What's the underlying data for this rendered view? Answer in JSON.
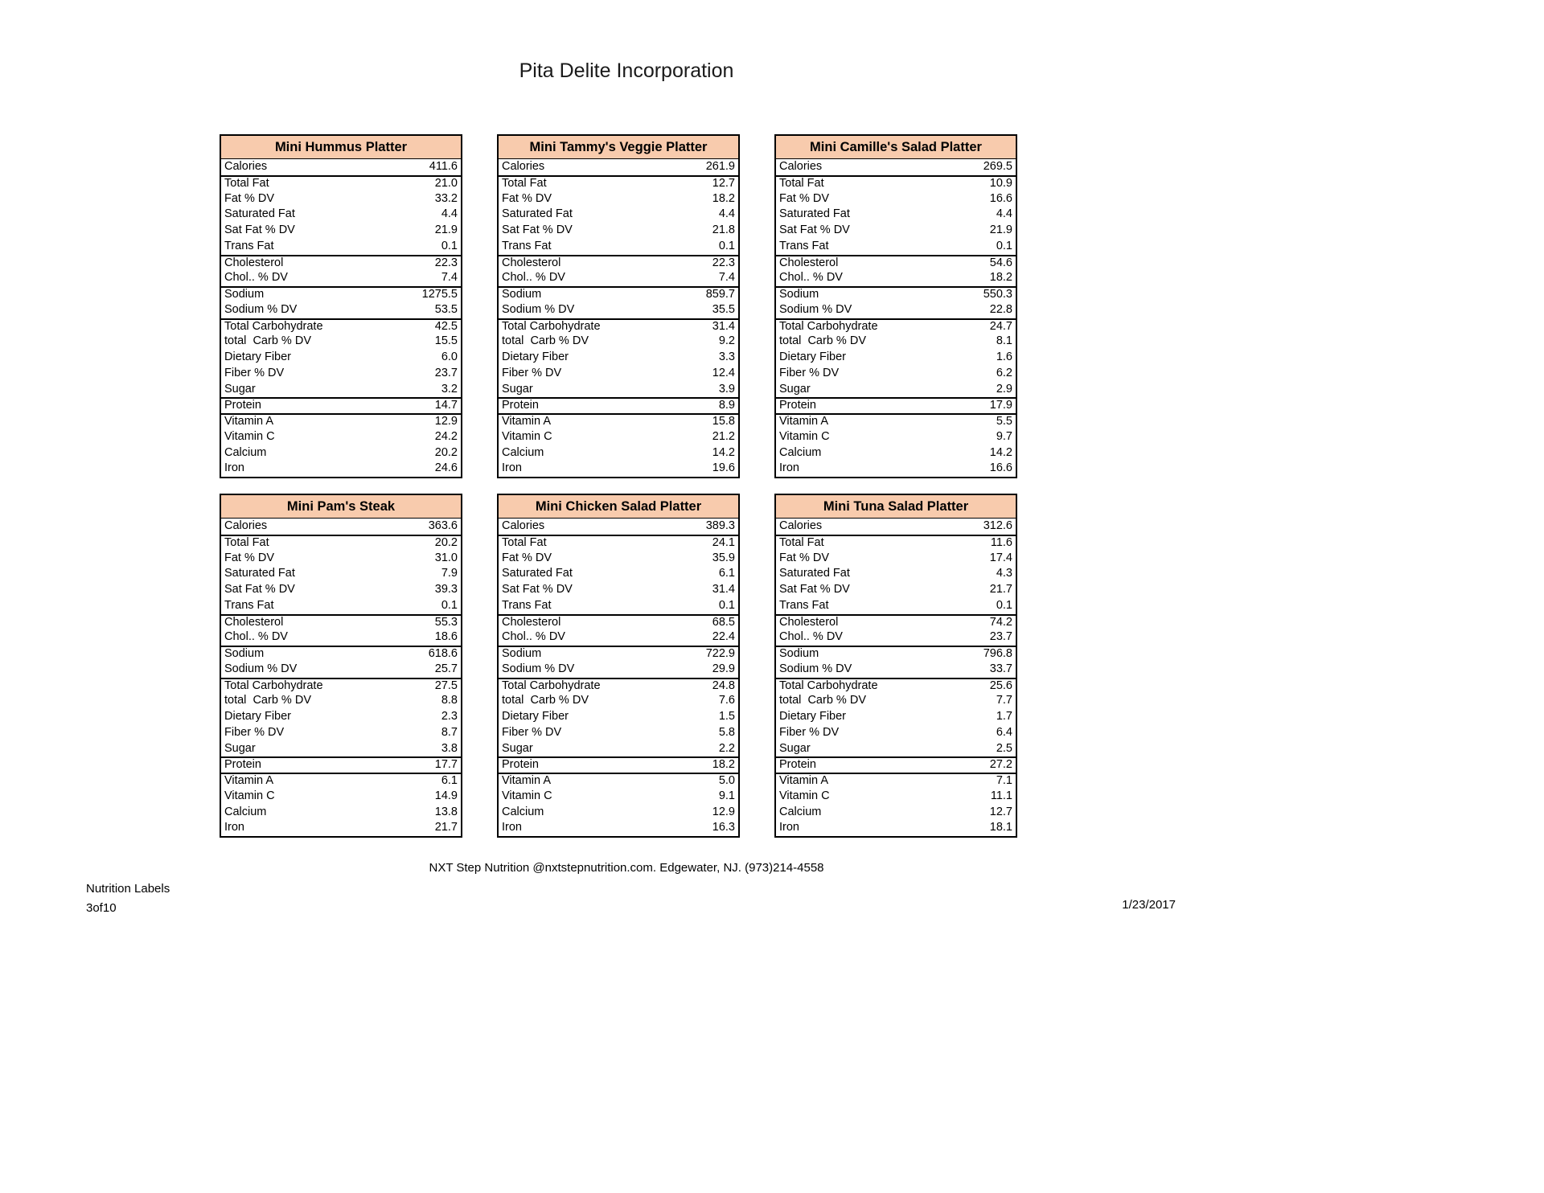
{
  "page": {
    "title": "Pita Delite Incorporation",
    "footer_contact": "NXT Step Nutrition @nxtstepnutrition.com. Edgewater, NJ. (973)214-4558",
    "doc_label": "Nutrition Labels",
    "page_number": "3of10",
    "date": "1/23/2017"
  },
  "colors": {
    "header_bg": "#F8CBAD",
    "border": "#000000"
  },
  "row_labels": [
    "Calories",
    "Total Fat",
    "Fat % DV",
    "Saturated Fat",
    "Sat Fat % DV",
    "Trans Fat",
    "Cholesterol",
    "Chol.. % DV",
    "Sodium",
    "Sodium % DV",
    "Total Carbohydrate",
    "total  Carb % DV",
    "Dietary Fiber",
    "Fiber % DV",
    "Sugar",
    "Protein",
    "Vitamin A",
    "Vitamin C",
    "Calcium",
    "Iron"
  ],
  "group_start_rows": [
    1,
    6,
    8,
    10,
    15,
    16
  ],
  "tables": [
    {
      "title": "Mini Hummus Platter",
      "values": [
        "411.6",
        "21.0",
        "33.2",
        "4.4",
        "21.9",
        "0.1",
        "22.3",
        "7.4",
        "1275.5",
        "53.5",
        "42.5",
        "15.5",
        "6.0",
        "23.7",
        "3.2",
        "14.7",
        "12.9",
        "24.2",
        "20.2",
        "24.6"
      ]
    },
    {
      "title": "Mini Tammy's Veggie Platter",
      "values": [
        "261.9",
        "12.7",
        "18.2",
        "4.4",
        "21.8",
        "0.1",
        "22.3",
        "7.4",
        "859.7",
        "35.5",
        "31.4",
        "9.2",
        "3.3",
        "12.4",
        "3.9",
        "8.9",
        "15.8",
        "21.2",
        "14.2",
        "19.6"
      ]
    },
    {
      "title": "Mini Camille's Salad Platter",
      "values": [
        "269.5",
        "10.9",
        "16.6",
        "4.4",
        "21.9",
        "0.1",
        "54.6",
        "18.2",
        "550.3",
        "22.8",
        "24.7",
        "8.1",
        "1.6",
        "6.2",
        "2.9",
        "17.9",
        "5.5",
        "9.7",
        "14.2",
        "16.6"
      ]
    },
    {
      "title": "Mini Pam's Steak",
      "values": [
        "363.6",
        "20.2",
        "31.0",
        "7.9",
        "39.3",
        "0.1",
        "55.3",
        "18.6",
        "618.6",
        "25.7",
        "27.5",
        "8.8",
        "2.3",
        "8.7",
        "3.8",
        "17.7",
        "6.1",
        "14.9",
        "13.8",
        "21.7"
      ]
    },
    {
      "title": "Mini Chicken Salad Platter",
      "values": [
        "389.3",
        "24.1",
        "35.9",
        "6.1",
        "31.4",
        "0.1",
        "68.5",
        "22.4",
        "722.9",
        "29.9",
        "24.8",
        "7.6",
        "1.5",
        "5.8",
        "2.2",
        "18.2",
        "5.0",
        "9.1",
        "12.9",
        "16.3"
      ]
    },
    {
      "title": "Mini Tuna Salad Platter",
      "values": [
        "312.6",
        "11.6",
        "17.4",
        "4.3",
        "21.7",
        "0.1",
        "74.2",
        "23.7",
        "796.8",
        "33.7",
        "25.6",
        "7.7",
        "1.7",
        "6.4",
        "2.5",
        "27.2",
        "7.1",
        "11.1",
        "12.7",
        "18.1"
      ]
    }
  ]
}
